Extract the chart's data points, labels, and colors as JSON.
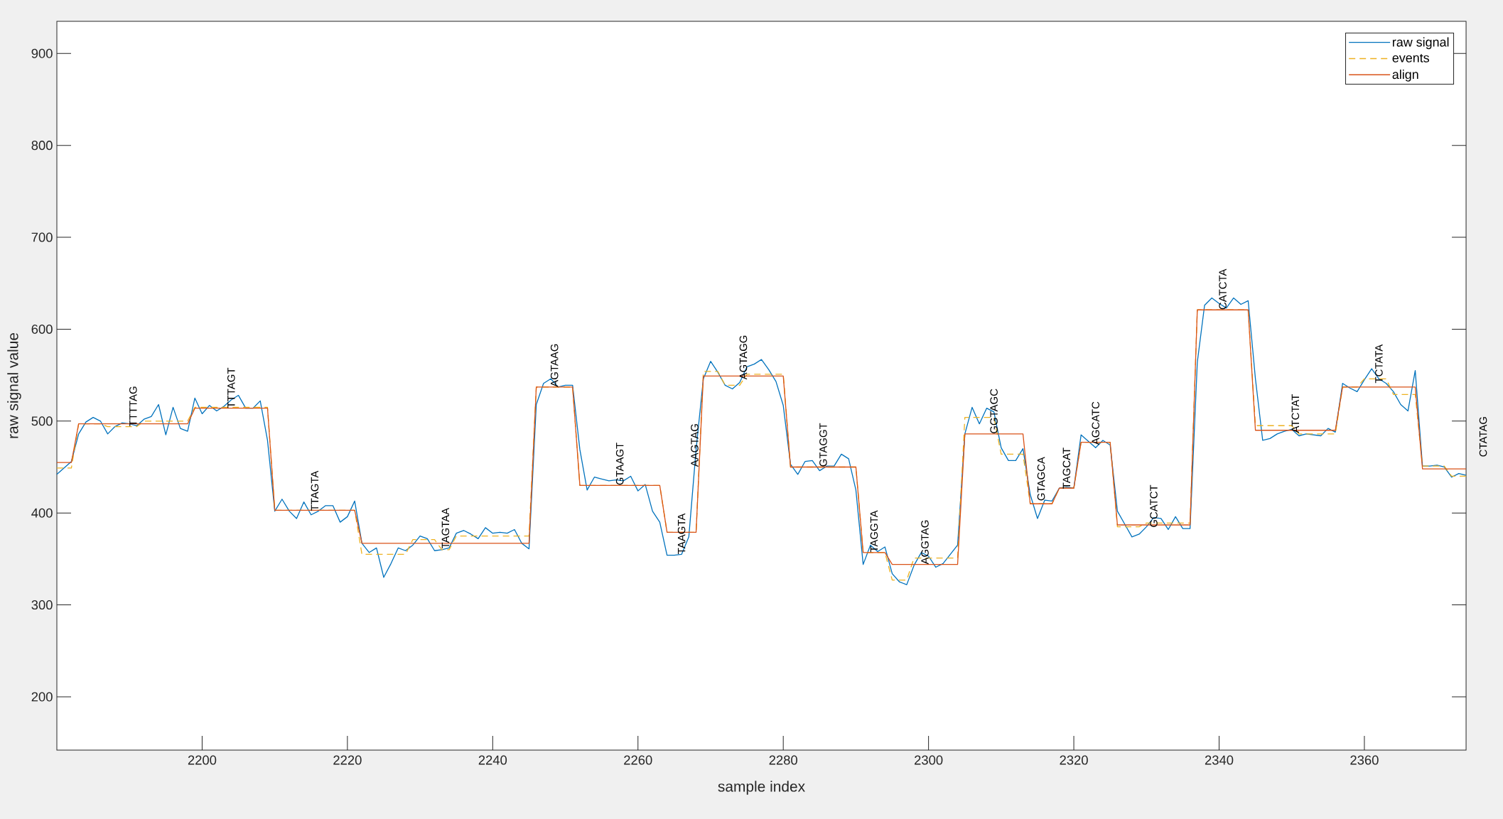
{
  "chart_data": {
    "type": "line",
    "xlabel": "sample index",
    "ylabel": "raw signal value",
    "xlim": [
      2180,
      2374
    ],
    "ylim": [
      142,
      935
    ],
    "xticks": [
      2200,
      2220,
      2240,
      2260,
      2280,
      2300,
      2320,
      2340,
      2360
    ],
    "yticks": [
      200,
      300,
      400,
      500,
      600,
      700,
      800,
      900
    ],
    "legend": "top right",
    "series": [
      {
        "name": "raw signal",
        "color": "#0072bd",
        "x": [
          2180,
          2181,
          2182,
          2183,
          2184,
          2185,
          2186,
          2187,
          2188,
          2189,
          2190,
          2191,
          2192,
          2193,
          2194,
          2195,
          2196,
          2197,
          2198,
          2199,
          2200,
          2201,
          2202,
          2203,
          2204,
          2205,
          2206,
          2207,
          2208,
          2209,
          2210,
          2211,
          2212,
          2213,
          2214,
          2215,
          2216,
          2217,
          2218,
          2219,
          2220,
          2221,
          2222,
          2223,
          2224,
          2225,
          2226,
          2227,
          2228,
          2229,
          2230,
          2231,
          2232,
          2233,
          2234,
          2235,
          2236,
          2237,
          2238,
          2239,
          2240,
          2241,
          2242,
          2243,
          2244,
          2245,
          2246,
          2247,
          2248,
          2249,
          2250,
          2251,
          2252,
          2253,
          2254,
          2255,
          2256,
          2257,
          2258,
          2259,
          2260,
          2261,
          2262,
          2263,
          2264,
          2265,
          2266,
          2267,
          2268,
          2269,
          2270,
          2271,
          2272,
          2273,
          2274,
          2275,
          2276,
          2277,
          2278,
          2279,
          2280,
          2281,
          2282,
          2283,
          2284,
          2285,
          2286,
          2287,
          2288,
          2289,
          2290,
          2291,
          2292,
          2293,
          2294,
          2295,
          2296,
          2297,
          2298,
          2299,
          2300,
          2301,
          2302,
          2303,
          2304,
          2305,
          2306,
          2307,
          2308,
          2309,
          2310,
          2311,
          2312,
          2313,
          2314,
          2315,
          2316,
          2317,
          2318,
          2319,
          2320,
          2321,
          2322,
          2323,
          2324,
          2325,
          2326,
          2327,
          2328,
          2329,
          2330,
          2331,
          2332,
          2333,
          2334,
          2335,
          2336,
          2337,
          2338,
          2339,
          2340,
          2341,
          2342,
          2343,
          2344,
          2345,
          2346,
          2347,
          2348,
          2349,
          2350,
          2351,
          2352,
          2353,
          2354,
          2355,
          2356,
          2357,
          2358,
          2359,
          2360,
          2361,
          2362,
          2363,
          2364,
          2365,
          2366,
          2367,
          2368,
          2369,
          2370,
          2371,
          2372,
          2373,
          2374
        ],
        "values": [
          442,
          449,
          456,
          486,
          499,
          504,
          500,
          486,
          494,
          498,
          497,
          495,
          502,
          505,
          518,
          485,
          515,
          492,
          489,
          525,
          508,
          517,
          511,
          516,
          523,
          528,
          514,
          514,
          522,
          479,
          402,
          415,
          402,
          394,
          412,
          398,
          402,
          408,
          408,
          390,
          396,
          413,
          367,
          357,
          362,
          330,
          345,
          362,
          359,
          365,
          375,
          372,
          359,
          360,
          362,
          378,
          381,
          377,
          372,
          384,
          378,
          379,
          378,
          382,
          367,
          361,
          518,
          541,
          546,
          537,
          539,
          539,
          469,
          425,
          439,
          437,
          435,
          436,
          435,
          440,
          424,
          431,
          402,
          390,
          354,
          354,
          355,
          374,
          469,
          546,
          565,
          553,
          539,
          535,
          542,
          559,
          562,
          567,
          556,
          543,
          517,
          453,
          442,
          456,
          457,
          446,
          451,
          451,
          464,
          459,
          425,
          344,
          365,
          358,
          363,
          334,
          325,
          322,
          343,
          357,
          353,
          341,
          345,
          355,
          365,
          486,
          515,
          497,
          514,
          510,
          471,
          457,
          457,
          470,
          420,
          394,
          414,
          413,
          427,
          428,
          427,
          485,
          478,
          471,
          479,
          474,
          402,
          388,
          374,
          377,
          385,
          395,
          394,
          382,
          396,
          383,
          383,
          564,
          626,
          634,
          628,
          623,
          634,
          627,
          631,
          546,
          479,
          481,
          486,
          489,
          491,
          484,
          486,
          485,
          484,
          492,
          488,
          541,
          536,
          532,
          545,
          557,
          546,
          541,
          532,
          518,
          511,
          555,
          451,
          451,
          452,
          450,
          439,
          443,
          441
        ]
      },
      {
        "name": "events",
        "color": "#edb120",
        "line_style": "dashed",
        "x": [
          2180,
          2182,
          2183,
          2186,
          2187,
          2191,
          2192,
          2198,
          2199,
          2209,
          2210,
          2221,
          2222,
          2228,
          2229,
          2232,
          2233,
          2234,
          2235,
          2245,
          2246,
          2251,
          2252,
          2263,
          2264,
          2268,
          2269,
          2271,
          2272,
          2274,
          2275,
          2280,
          2281,
          2290,
          2291,
          2294,
          2295,
          2297,
          2298,
          2304,
          2305,
          2309,
          2310,
          2313,
          2314,
          2317,
          2318,
          2320,
          2321,
          2325,
          2326,
          2329,
          2330,
          2336,
          2337,
          2344,
          2345,
          2350,
          2351,
          2356,
          2357,
          2359,
          2360,
          2363,
          2364,
          2367,
          2368,
          2371,
          2372,
          2374
        ],
        "values": [
          449,
          449,
          497,
          497,
          494,
          494,
          500,
          500,
          515,
          515,
          403,
          403,
          355,
          355,
          371,
          371,
          360,
          360,
          375,
          375,
          537,
          537,
          430,
          430,
          379,
          379,
          554,
          554,
          539,
          539,
          551,
          551,
          450,
          450,
          357,
          357,
          327,
          327,
          351,
          351,
          504,
          504,
          464,
          464,
          410,
          410,
          427,
          427,
          477,
          477,
          385,
          385,
          389,
          389,
          621,
          621,
          495,
          495,
          486,
          486,
          537,
          537,
          546,
          546,
          529,
          529,
          451,
          451,
          440,
          440
        ]
      },
      {
        "name": "align",
        "color": "#d95319",
        "x": [
          2180,
          2182,
          2183,
          2198,
          2199,
          2209,
          2210,
          2221,
          2222,
          2245,
          2246,
          2251,
          2252,
          2263,
          2264,
          2268,
          2269,
          2280,
          2281,
          2290,
          2291,
          2294,
          2295,
          2304,
          2305,
          2313,
          2314,
          2317,
          2318,
          2320,
          2321,
          2325,
          2326,
          2336,
          2337,
          2344,
          2345,
          2356,
          2357,
          2367,
          2368,
          2374
        ],
        "values": [
          455,
          455,
          497,
          497,
          514,
          514,
          403,
          403,
          367,
          367,
          537,
          537,
          430,
          430,
          379,
          379,
          549,
          549,
          450,
          450,
          357,
          357,
          344,
          344,
          486,
          486,
          410,
          410,
          427,
          427,
          477,
          477,
          387,
          387,
          621,
          621,
          490,
          490,
          537,
          537,
          448,
          448
        ]
      }
    ],
    "annotations": [
      {
        "text": "TTTTAG",
        "x": 2190.5,
        "y": 494
      },
      {
        "text": "TTTAGT",
        "x": 2204,
        "y": 514
      },
      {
        "text": "TTAGTA",
        "x": 2215.5,
        "y": 402
      },
      {
        "text": "TAGTAA",
        "x": 2233.5,
        "y": 361
      },
      {
        "text": "AGTAAG",
        "x": 2248.5,
        "y": 537
      },
      {
        "text": "GTAAGT",
        "x": 2257.5,
        "y": 430
      },
      {
        "text": "TAAGTA",
        "x": 2266,
        "y": 355
      },
      {
        "text": "AAGTAG",
        "x": 2267.8,
        "y": 450
      },
      {
        "text": "AGTAGG",
        "x": 2274.5,
        "y": 545
      },
      {
        "text": "GTAGGT",
        "x": 2285.5,
        "y": 450
      },
      {
        "text": "TAGGTA",
        "x": 2292.5,
        "y": 357
      },
      {
        "text": "AGGTAG",
        "x": 2299.5,
        "y": 344
      },
      {
        "text": "GGTAGC",
        "x": 2309,
        "y": 486
      },
      {
        "text": "GTAGCA",
        "x": 2315.5,
        "y": 413
      },
      {
        "text": "TAGCAT",
        "x": 2319,
        "y": 426
      },
      {
        "text": "AGCATC",
        "x": 2323,
        "y": 474
      },
      {
        "text": "GCATCT",
        "x": 2331,
        "y": 384
      },
      {
        "text": "CATCTA",
        "x": 2340.5,
        "y": 621
      },
      {
        "text": "ATCTAT",
        "x": 2350.5,
        "y": 487
      },
      {
        "text": "TCTATA",
        "x": 2362,
        "y": 541
      },
      "CTATAG"
    ]
  }
}
